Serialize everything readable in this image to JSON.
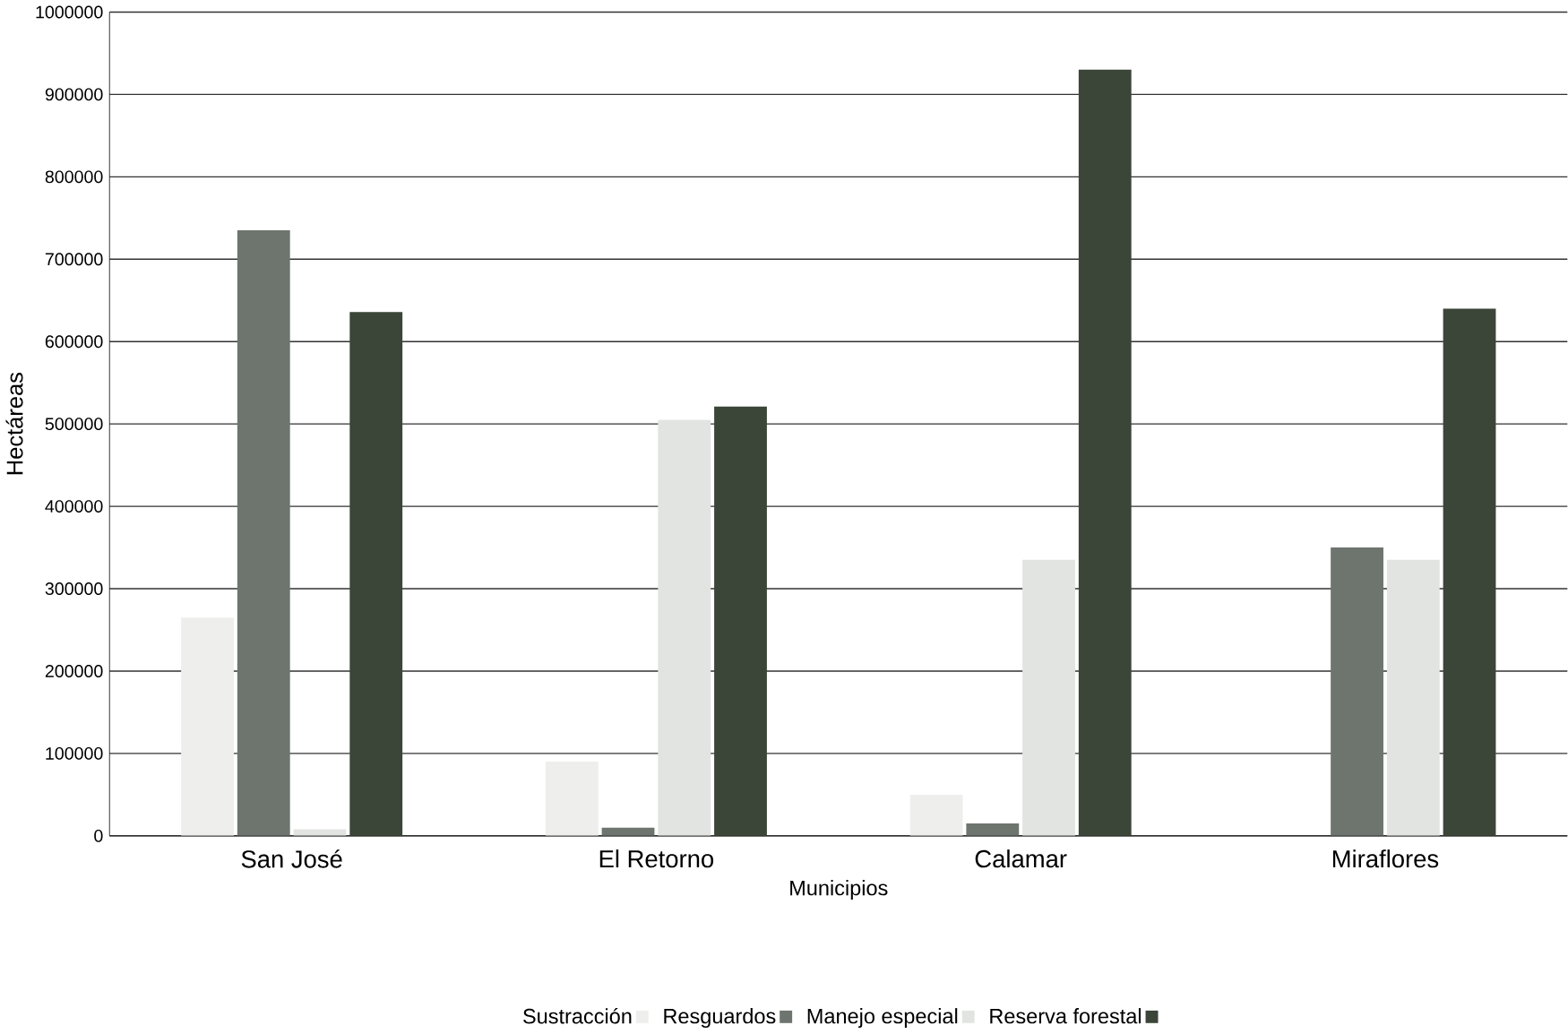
{
  "chart_data": {
    "type": "bar",
    "xlabel": "Municipios",
    "ylabel": "Hectáreas",
    "categories": [
      "San José",
      "El Retorno",
      "Calamar",
      "Miraflores"
    ],
    "series": [
      {
        "name": "Sustracción",
        "color": "#eeefed",
        "values": [
          265000,
          90000,
          50000,
          null
        ]
      },
      {
        "name": "Resguardos",
        "color": "#6e746e",
        "values": [
          735000,
          10000,
          15000,
          350000
        ]
      },
      {
        "name": "Manejo especial",
        "color": "#e2e4e2",
        "values": [
          8000,
          505000,
          335000,
          335000
        ]
      },
      {
        "name": "Reserva forestal",
        "color": "#3b4538",
        "values": [
          636000,
          521000,
          930000,
          640000
        ]
      }
    ],
    "ylim": [
      0,
      1000000
    ],
    "yticks": [
      0,
      100000,
      200000,
      300000,
      400000,
      500000,
      600000,
      700000,
      800000,
      900000,
      1000000
    ],
    "grid": "y",
    "legend": "bottom"
  }
}
